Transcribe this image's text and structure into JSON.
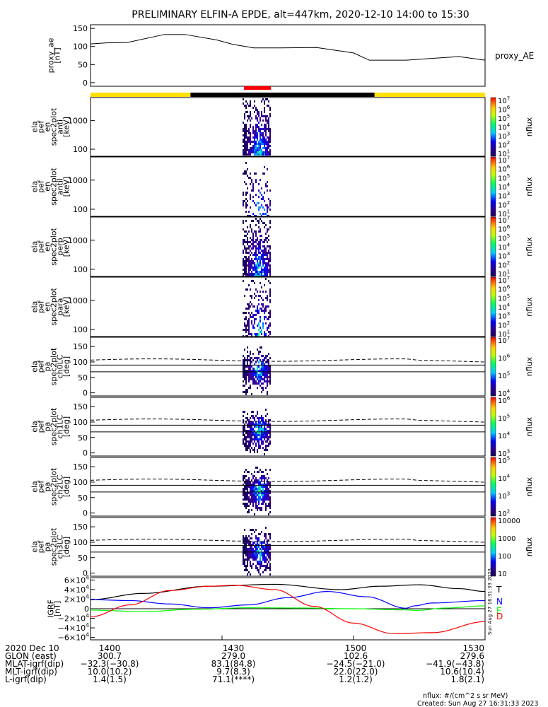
{
  "title": "PRELIMINARY ELFIN-A EPDE, alt=447km, 2020-12-10 14:00 to 15:30",
  "chart_data": [
    {
      "type": "line",
      "panel": "proxy_ae",
      "ylabel_lines": [
        "proxy_ae",
        "[nT]"
      ],
      "legend": "proxy_AE",
      "ylim": [
        -10,
        160
      ],
      "yticks": [
        "150",
        "100",
        "50",
        "0"
      ],
      "x_minutes": [
        0,
        6,
        14,
        28,
        36,
        48,
        54,
        62,
        72,
        86,
        100,
        106,
        120,
        140,
        150
      ],
      "y": [
        107,
        110,
        111,
        133,
        133,
        118,
        106,
        96,
        96,
        97,
        82,
        62,
        62,
        72,
        62
      ]
    },
    {
      "type": "heatmap",
      "panel": "spec2plot-anti",
      "ylabel_lines": [
        "ela",
        "pef",
        "en",
        "spec2plot",
        "anti",
        "[keV]"
      ],
      "yticks": [
        "1000",
        "100"
      ],
      "colorbar": {
        "label": "nflux",
        "ticks": [
          "10^1",
          "10^2",
          "10^3",
          "10^4",
          "10^5",
          "10^6",
          "10^7"
        ]
      }
    },
    {
      "type": "heatmap",
      "panel": "spec2plot-antil",
      "ylabel_lines": [
        "ela",
        "pef",
        "en",
        "spec2plot",
        "antil",
        "[keV]"
      ],
      "yticks": [
        "1000",
        "100"
      ],
      "colorbar": {
        "label": "nflux",
        "ticks": [
          "10^1",
          "10^2",
          "10^3",
          "10^4",
          "10^5",
          "10^6",
          "10^7"
        ]
      }
    },
    {
      "type": "heatmap",
      "panel": "spec2plot-perp",
      "ylabel_lines": [
        "ela",
        "pef",
        "en",
        "spec2plot",
        "perp",
        "[keV]"
      ],
      "yticks": [
        "1000",
        "100"
      ],
      "colorbar": {
        "label": "nflux",
        "ticks": [
          "10^1",
          "10^2",
          "10^3",
          "10^4",
          "10^5",
          "10^6",
          "10^7"
        ]
      }
    },
    {
      "type": "heatmap",
      "panel": "spec2plot-para",
      "ylabel_lines": [
        "ela",
        "pef",
        "en",
        "spec2plot",
        "para",
        "[keV]"
      ],
      "yticks": [
        "1000",
        "100"
      ],
      "colorbar": {
        "label": "nflux",
        "ticks": [
          "10^1",
          "10^2",
          "10^3",
          "10^4",
          "10^5",
          "10^6",
          "10^7"
        ]
      }
    },
    {
      "type": "heatmap",
      "panel": "spec2plot-ch0LC",
      "ylabel_lines": [
        "ela",
        "pef",
        "pa",
        "spec2plot",
        "ch0LC",
        "[deg]"
      ],
      "yticks": [
        "150",
        "100",
        "50",
        "0"
      ],
      "colorbar": {
        "label": "nflux",
        "ticks": [
          "10^4",
          "10^5",
          "10^6",
          "10^7"
        ]
      }
    },
    {
      "type": "heatmap",
      "panel": "spec2plot-ch1LC",
      "ylabel_lines": [
        "ela",
        "pef",
        "pa",
        "spec2plot",
        "ch1LC",
        "[deg]"
      ],
      "yticks": [
        "150",
        "100",
        "50",
        "0"
      ],
      "colorbar": {
        "label": "nflux",
        "ticks": [
          "10^3",
          "10^4",
          "10^5",
          "10^6"
        ]
      }
    },
    {
      "type": "heatmap",
      "panel": "spec2plot-ch2LC",
      "ylabel_lines": [
        "ela",
        "pef",
        "pa",
        "spec2plot",
        "ch2LC",
        "[deg]"
      ],
      "yticks": [
        "150",
        "100",
        "50",
        "0"
      ],
      "colorbar": {
        "label": "nflux",
        "ticks": [
          "10^2",
          "10^3",
          "10^4",
          "10^5"
        ]
      }
    },
    {
      "type": "heatmap",
      "panel": "spec2plot-ch3LC",
      "ylabel_lines": [
        "ela",
        "pef",
        "pa",
        "spec2plot",
        "ch3LC",
        "[deg]"
      ],
      "yticks": [
        "150",
        "100",
        "50",
        "0"
      ],
      "colorbar": {
        "label": "nflux",
        "ticks": [
          "10",
          "100",
          "1000",
          "10000"
        ]
      }
    },
    {
      "type": "line",
      "panel": "IGRF",
      "ylabel_lines": [
        "IGRF",
        "[nT]"
      ],
      "ylim": [
        -65000,
        65000
      ],
      "yticks": [
        "6×10^4",
        "4×10^4",
        "2×10^4",
        "0",
        "−2×10^4",
        "−4×10^4",
        "−6×10^4"
      ],
      "series": [
        {
          "name": "T",
          "color": "#000000",
          "x_minutes": [
            0,
            20,
            45,
            70,
            95,
            110,
            125,
            140,
            150
          ],
          "y": [
            19000,
            32000,
            47000,
            51000,
            40000,
            47000,
            50000,
            42000,
            36000
          ]
        },
        {
          "name": "N",
          "color": "#0000ff",
          "x_minutes": [
            0,
            15,
            30,
            45,
            60,
            75,
            90,
            105,
            120,
            123,
            130,
            150
          ],
          "y": [
            19000,
            17000,
            10000,
            2000,
            8000,
            23000,
            36000,
            25000,
            1000,
            6000,
            12000,
            17000
          ]
        },
        {
          "name": "E",
          "color": "#00ff00",
          "x_minutes": [
            0,
            20,
            40,
            60,
            80,
            100,
            120,
            124,
            135,
            150
          ],
          "y": [
            -3000,
            -6000,
            -1000,
            2000,
            1500,
            0,
            -2500,
            -3500,
            1500,
            6000
          ]
        },
        {
          "name": "D",
          "color": "#ff0000",
          "x_minutes": [
            0,
            15,
            30,
            45,
            55,
            70,
            85,
            100,
            115,
            130,
            150
          ],
          "y": [
            -17000,
            8000,
            38000,
            47000,
            49000,
            40000,
            5000,
            -30000,
            -52000,
            -50000,
            -27000
          ]
        }
      ]
    }
  ],
  "time_axis": {
    "ticks": [
      "1400",
      "1430",
      "1500",
      "1530"
    ],
    "rows": [
      {
        "label": "2020 Dec 10",
        "values": [
          "",
          "",
          "",
          ""
        ]
      },
      {
        "label": "GLON (east)",
        "values": [
          "300.7",
          "279.0",
          "102.6",
          "279.6"
        ]
      },
      {
        "label": "MLAT-igrf(dip)",
        "values": [
          "−32.3(−30.8)",
          "83.1(84.8)",
          "−24.5(−21.0)",
          "−41.9(−43.8)"
        ]
      },
      {
        "label": "MLT-igrf(dip)",
        "values": [
          "10.0(10.2)",
          "9.7(8.3)",
          "22.0(22.0)",
          "10.6(10.4)"
        ]
      },
      {
        "label": "L-igrf(dip)",
        "values": [
          "1.4(1.5)",
          "71.1(****)",
          "1.2(1.2)",
          "1.8(2.1)"
        ]
      }
    ]
  },
  "vertical_stamp": "Sun Aug 27 16:31:33 2023",
  "footer": {
    "units": "nflux: #/(cm^2 s sr MeV)",
    "created": "Created: Sun Aug 27 16:31:33 2023"
  },
  "colors": {
    "day": "#ffe000",
    "night": "#000000",
    "science": "#ff0000"
  }
}
